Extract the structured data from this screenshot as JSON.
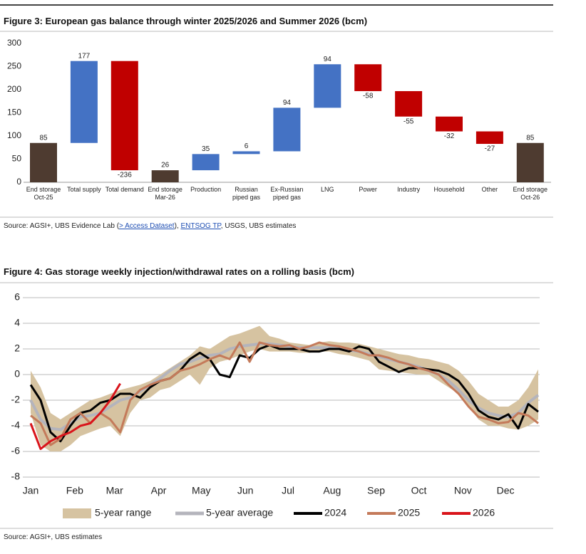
{
  "chart_data": [
    {
      "type": "waterfall",
      "title": "Figure 3: European gas balance through winter 2025/2026 and Summer 2026 (bcm)",
      "categories": [
        "End storage Oct-25",
        "Total supply",
        "Total demand",
        "End storage Mar-26",
        "Production",
        "Russian piped gas",
        "Ex-Russian piped gas",
        "LNG",
        "Power",
        "Industry",
        "Household",
        "Other",
        "End storage Oct-26"
      ],
      "values": [
        85,
        177,
        -236,
        26,
        35,
        6,
        94,
        94,
        -58,
        -55,
        -32,
        -27,
        85
      ],
      "totals": [
        0,
        3,
        12
      ],
      "total_color": "#4e3b30",
      "increase_color": "#4472c4",
      "decrease_color": "#c00000",
      "ylim": [
        0,
        300
      ],
      "yticks": [
        0,
        50,
        100,
        150,
        200,
        250,
        300
      ],
      "source": [
        "Source: AGSI+, UBS Evidence Lab (",
        "> Access Dataset",
        "), ",
        "ENTSOG TP",
        ", USGS, UBS estimates"
      ]
    },
    {
      "type": "line",
      "title": "Figure 4: Gas storage weekly injection/withdrawal rates on a rolling basis (bcm)",
      "x": [
        1,
        2,
        3,
        4,
        5,
        6,
        7,
        8,
        9,
        10,
        11,
        12,
        13,
        14,
        15,
        16,
        17,
        18,
        19,
        20,
        21,
        22,
        23,
        24,
        25,
        26,
        27,
        28,
        29,
        30,
        31,
        32,
        33,
        34,
        35,
        36,
        37,
        38,
        39,
        40,
        41,
        42,
        43,
        44,
        45,
        46,
        47,
        48,
        49,
        50,
        51,
        52
      ],
      "xlim": [
        1,
        52
      ],
      "xticks": [
        {
          "value": 1,
          "label": "Jan"
        },
        {
          "value": 5.43,
          "label": "Feb"
        },
        {
          "value": 9.43,
          "label": "Mar"
        },
        {
          "value": 13.86,
          "label": "Apr"
        },
        {
          "value": 18.14,
          "label": "May"
        },
        {
          "value": 22.57,
          "label": "Jun"
        },
        {
          "value": 26.86,
          "label": "Jul"
        },
        {
          "value": 31.29,
          "label": "Aug"
        },
        {
          "value": 35.71,
          "label": "Sep"
        },
        {
          "value": 40,
          "label": "Oct"
        },
        {
          "value": 44.43,
          "label": "Nov"
        },
        {
          "value": 48.71,
          "label": "Dec"
        }
      ],
      "ylim": [
        -8,
        6
      ],
      "yticks": [
        -8,
        -6,
        -4,
        -2,
        0,
        2,
        4,
        6
      ],
      "grid": true,
      "range": {
        "name": "5-year range",
        "color": "#d6c3a1",
        "high": [
          0.3,
          -1,
          -3,
          -3.5,
          -3,
          -2.5,
          -2,
          -1.8,
          -1.5,
          -1.2,
          -1,
          -0.8,
          -0.5,
          0,
          0.5,
          1,
          1.5,
          2.2,
          2,
          2.5,
          3,
          3.2,
          3.5,
          3.8,
          3,
          2.8,
          2.5,
          2.4,
          2.3,
          2.5,
          2.6,
          2.5,
          2.5,
          2.4,
          2.2,
          2,
          1.8,
          1.6,
          1.5,
          1.3,
          1.2,
          1,
          0.8,
          0.3,
          -0.5,
          -1.5,
          -2,
          -2.5,
          -2.5,
          -2,
          -1,
          0.4
        ],
        "low": [
          -3,
          -5.5,
          -6,
          -6,
          -5.5,
          -4.8,
          -4.5,
          -4.2,
          -4,
          -4.8,
          -3,
          -2,
          -1.8,
          -1.2,
          -1,
          -0.5,
          0,
          -0.8,
          0.5,
          1,
          1.2,
          1.5,
          1.8,
          2,
          1.8,
          1.8,
          1.8,
          1.7,
          1.7,
          1.8,
          1.8,
          1.6,
          1.5,
          1.3,
          1.1,
          0.4,
          0.3,
          0.2,
          0.1,
          0,
          0,
          -0.5,
          -1,
          -1.5,
          -2.5,
          -3.5,
          -4,
          -4,
          -4.2,
          -4.3,
          -4,
          -3.5
        ]
      },
      "series": [
        {
          "name": "5-year average",
          "color": "#b4b4bc",
          "width": 4,
          "values": [
            -2,
            -3.5,
            -4.2,
            -4.3,
            -3.8,
            -3.3,
            -3.2,
            -3,
            -2.5,
            -2,
            -1.8,
            -1.3,
            -0.8,
            -0.3,
            0.3,
            0.8,
            1,
            1.3,
            1.5,
            1.6,
            2,
            2.2,
            2.3,
            2.4,
            2.4,
            2.3,
            2.2,
            2.1,
            2.1,
            2.1,
            2.1,
            2,
            1.9,
            1.8,
            1.6,
            1.4,
            1.2,
            1,
            0.8,
            0.6,
            0.3,
            0,
            -0.5,
            -1.2,
            -2,
            -2.6,
            -3,
            -3.2,
            -3.3,
            -3,
            -2.2,
            -1.6
          ]
        },
        {
          "name": "2024",
          "color": "#000000",
          "width": 3,
          "values": [
            -0.8,
            -2,
            -4.5,
            -5.2,
            -4,
            -3,
            -2.8,
            -2.2,
            -2,
            -1.5,
            -1.5,
            -1.8,
            -1,
            -0.5,
            -0.3,
            0.3,
            1.2,
            1.7,
            1.2,
            0,
            -0.2,
            1.5,
            1.3,
            2,
            2.3,
            2,
            2,
            2,
            1.8,
            1.8,
            2,
            2,
            1.8,
            2.2,
            2,
            1,
            0.6,
            0.2,
            0.5,
            0.5,
            0.4,
            0.3,
            0,
            -0.5,
            -1.5,
            -2.8,
            -3.3,
            -3.5,
            -3.1,
            -4.2,
            -2.3,
            -2.9
          ]
        },
        {
          "name": "2025",
          "color": "#c47a5a",
          "width": 3,
          "values": [
            -3.2,
            -3.8,
            -5.5,
            -5,
            -3.5,
            -3,
            -3.8,
            -3,
            -3.5,
            -4.5,
            -2,
            -1.2,
            -0.8,
            -0.5,
            -0.3,
            0.3,
            0.5,
            0.8,
            1.2,
            1.5,
            1.2,
            2.5,
            1,
            2.5,
            2.3,
            2.2,
            2.3,
            2,
            2.2,
            2.5,
            2.3,
            2.2,
            2,
            1.8,
            1.5,
            1.5,
            1.3,
            1,
            0.8,
            0.5,
            0.3,
            0,
            -0.8,
            -1.5,
            -2.5,
            -3.3,
            -3.5,
            -3.8,
            -3.7,
            -3,
            -3.2,
            -3.8
          ]
        },
        {
          "name": "2026",
          "color": "#d9141b",
          "width": 3,
          "values": [
            -3.8,
            -5.8,
            -5.2,
            -4.8,
            -4.5,
            -4,
            -3.8,
            -3,
            -2,
            -0.7,
            null,
            null,
            null,
            null,
            null,
            null,
            null,
            null,
            null,
            null,
            null,
            null,
            null,
            null,
            null,
            null,
            null,
            null,
            null,
            null,
            null,
            null,
            null,
            null,
            null,
            null,
            null,
            null,
            null,
            null,
            null,
            null,
            null,
            null,
            null,
            null,
            null,
            null,
            null,
            null,
            null,
            null
          ]
        }
      ],
      "source": [
        "Source: AGSI+, UBS estimates"
      ]
    }
  ]
}
